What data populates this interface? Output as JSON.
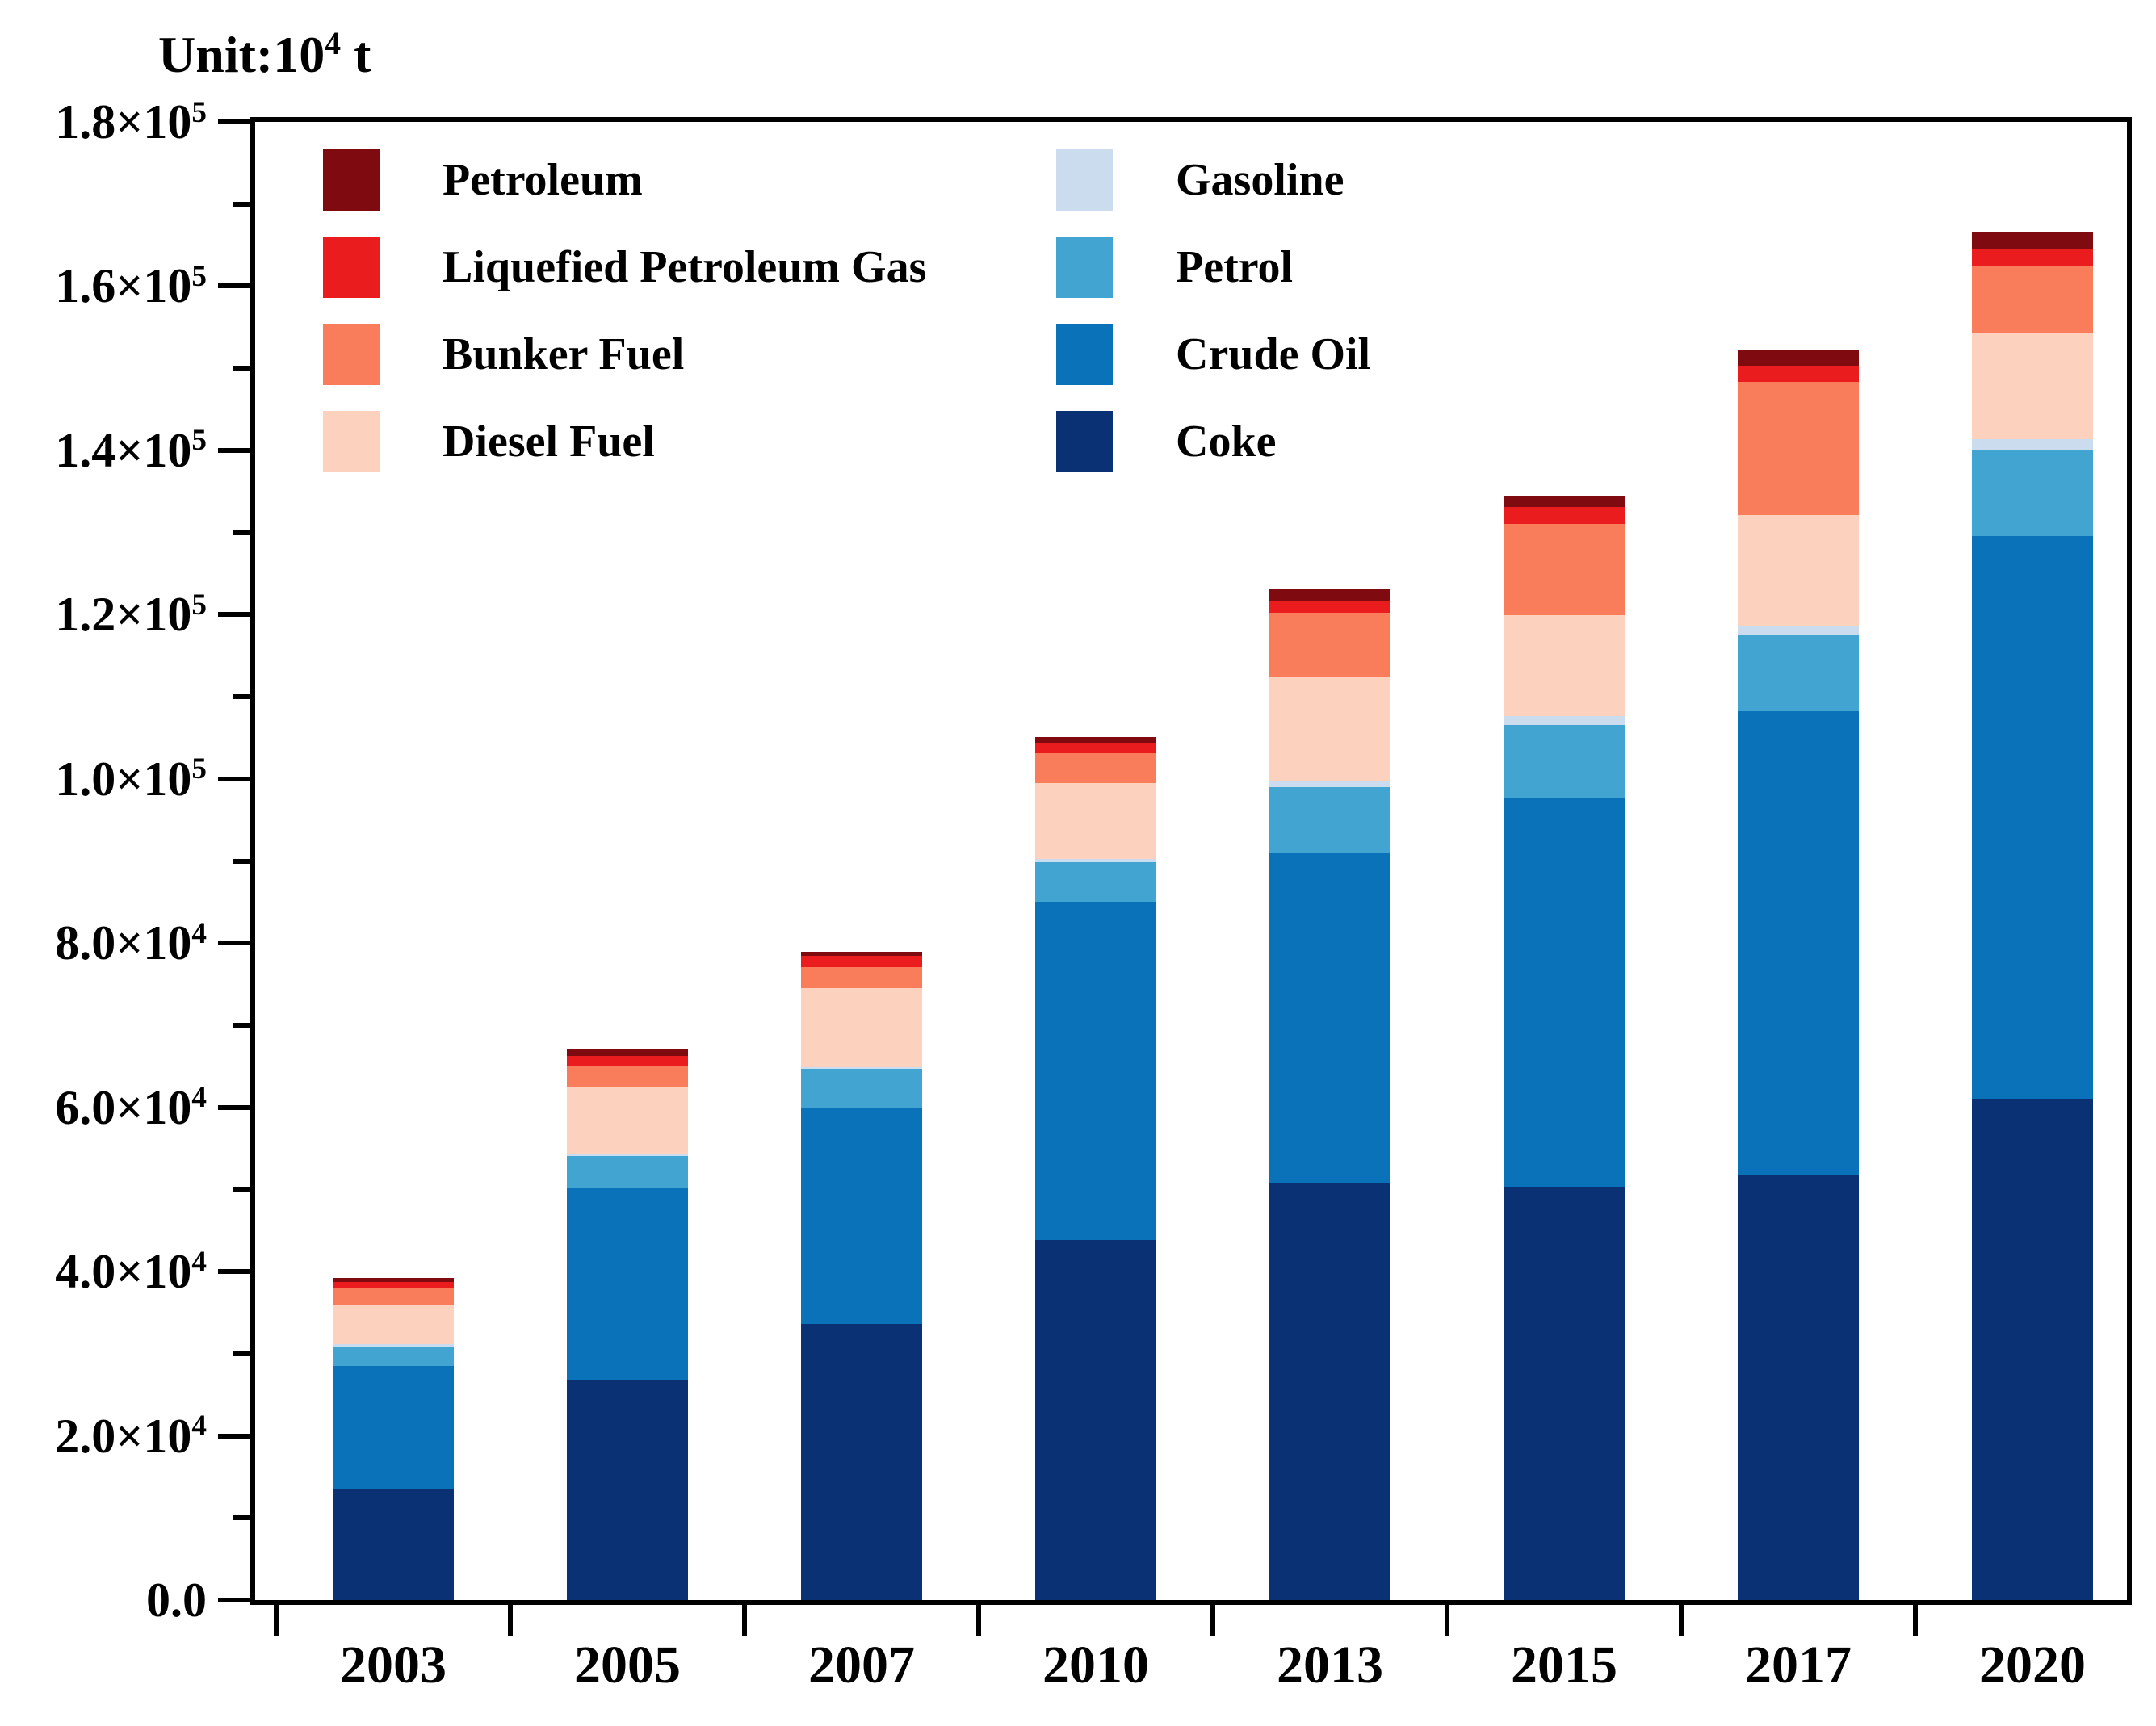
{
  "title": {
    "prefix": "Unit:10",
    "exponent": "4",
    "suffix": " t"
  },
  "chart_data": {
    "type": "bar",
    "stacked": true,
    "values_unit": "10^4 t",
    "categories": [
      "2003",
      "2005",
      "2007",
      "2010",
      "2013",
      "2015",
      "2017",
      "2020"
    ],
    "stack_order": [
      "Coke",
      "Crude Oil",
      "Petrol",
      "Gasoline",
      "Diesel Fuel",
      "Bunker Fuel",
      "Liquefied Petroleum Gas",
      "Petroleum"
    ],
    "series": [
      {
        "name": "Coke",
        "color": "#0B3175",
        "values": [
          1.35,
          2.68,
          3.36,
          4.38,
          5.08,
          5.03,
          5.17,
          6.1
        ]
      },
      {
        "name": "Crude Oil",
        "color": "#0A72B8",
        "values": [
          1.5,
          2.34,
          2.64,
          4.12,
          4.01,
          4.73,
          5.65,
          6.86
        ]
      },
      {
        "name": "Petrol",
        "color": "#42A5D1",
        "values": [
          0.23,
          0.39,
          0.47,
          0.49,
          0.81,
          0.9,
          0.93,
          1.04
        ]
      },
      {
        "name": "Gasoline",
        "color": "#CBDCEE",
        "values": [
          0.04,
          0.03,
          0.02,
          0.03,
          0.08,
          0.1,
          0.12,
          0.14
        ]
      },
      {
        "name": "Diesel Fuel",
        "color": "#FCD1BE",
        "values": [
          0.47,
          0.81,
          0.96,
          0.93,
          1.27,
          1.23,
          1.34,
          1.29
        ]
      },
      {
        "name": "Bunker Fuel",
        "color": "#F97D5B",
        "values": [
          0.2,
          0.25,
          0.26,
          0.36,
          0.77,
          1.11,
          1.62,
          0.82
        ]
      },
      {
        "name": "Liquefied Petroleum Gas",
        "color": "#EA1C1E",
        "values": [
          0.08,
          0.13,
          0.13,
          0.13,
          0.15,
          0.21,
          0.2,
          0.2
        ]
      },
      {
        "name": "Petroleum",
        "color": "#7F0B10",
        "values": [
          0.05,
          0.07,
          0.05,
          0.07,
          0.14,
          0.13,
          0.2,
          0.21
        ]
      }
    ],
    "legend": {
      "position": "inside-top",
      "column1": [
        "Petroleum",
        "Liquefied Petroleum Gas",
        "Bunker Fuel",
        "Diesel Fuel"
      ],
      "column2": [
        "Gasoline",
        "Petrol",
        "Crude Oil",
        "Coke"
      ]
    },
    "y_axis": {
      "min": 0,
      "max": 180000,
      "major_step": 20000,
      "minor_step": 10000,
      "grid": false,
      "tick_labels": [
        {
          "m": "0.0",
          "e": ""
        },
        {
          "m": "2.0×10",
          "e": "4"
        },
        {
          "m": "4.0×10",
          "e": "4"
        },
        {
          "m": "6.0×10",
          "e": "4"
        },
        {
          "m": "8.0×10",
          "e": "4"
        },
        {
          "m": "1.0×10",
          "e": "5"
        },
        {
          "m": "1.2×10",
          "e": "5"
        },
        {
          "m": "1.4×10",
          "e": "5"
        },
        {
          "m": "1.6×10",
          "e": "5"
        },
        {
          "m": "1.8×10",
          "e": "5"
        }
      ]
    },
    "x_axis": {
      "tick_positions": "between-categories",
      "grid": false
    }
  }
}
